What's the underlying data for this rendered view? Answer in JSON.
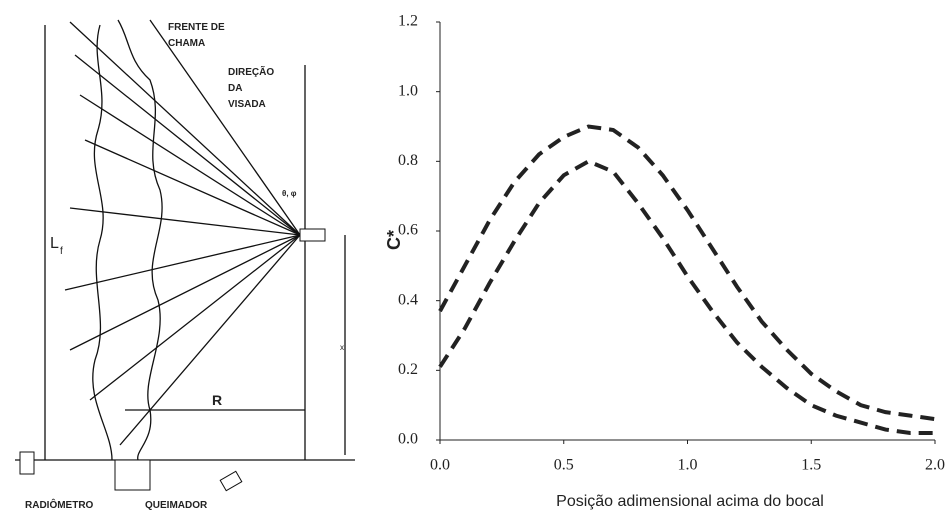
{
  "diagram": {
    "labels": {
      "flame_front": [
        "FRENTE DE",
        "CHAMA"
      ],
      "line_of_sight": [
        "DIREÇÃO",
        "DA",
        "VISADA"
      ],
      "angles": "θ, φ",
      "flame_length": "L",
      "flame_length_sub": "f",
      "radius": "R",
      "height": "x",
      "radiometer": "RADIÔMETRO",
      "burner": "QUEIMADOR"
    }
  },
  "chart_data": {
    "type": "line",
    "x_label": "Posição adimensional  acima do bocal",
    "y_label": "C*",
    "x": [
      0,
      0.1,
      0.2,
      0.3,
      0.4,
      0.5,
      0.6,
      0.7,
      0.8,
      0.9,
      1.0,
      1.1,
      1.2,
      1.3,
      1.4,
      1.5,
      1.6,
      1.7,
      1.8,
      1.9,
      2.0
    ],
    "series": [
      {
        "color": "#222222",
        "values": [
          0.37,
          0.5,
          0.63,
          0.74,
          0.82,
          0.87,
          0.9,
          0.89,
          0.84,
          0.76,
          0.66,
          0.55,
          0.44,
          0.34,
          0.26,
          0.19,
          0.14,
          0.1,
          0.08,
          0.07,
          0.06
        ]
      },
      {
        "color": "#222222",
        "values": [
          0.21,
          0.32,
          0.45,
          0.57,
          0.68,
          0.76,
          0.8,
          0.77,
          0.68,
          0.58,
          0.47,
          0.37,
          0.28,
          0.21,
          0.15,
          0.1,
          0.07,
          0.05,
          0.03,
          0.02,
          0.02
        ]
      }
    ],
    "line_style": "dashed",
    "xlim": [
      0,
      2.0
    ],
    "xticks": [
      {
        "value": 0,
        "label": "0.0"
      },
      0.5,
      {
        "value": 1.0,
        "label": "1.0"
      },
      1.5,
      {
        "value": 2.0,
        "label": "2.0"
      }
    ],
    "ylim": [
      0,
      1.2
    ],
    "yticks": [
      {
        "value": 0,
        "label": "0.0"
      },
      0.2,
      0.4,
      0.6,
      0.8,
      {
        "value": 1.0,
        "label": "1.0"
      },
      1.2
    ],
    "grid": false
  }
}
